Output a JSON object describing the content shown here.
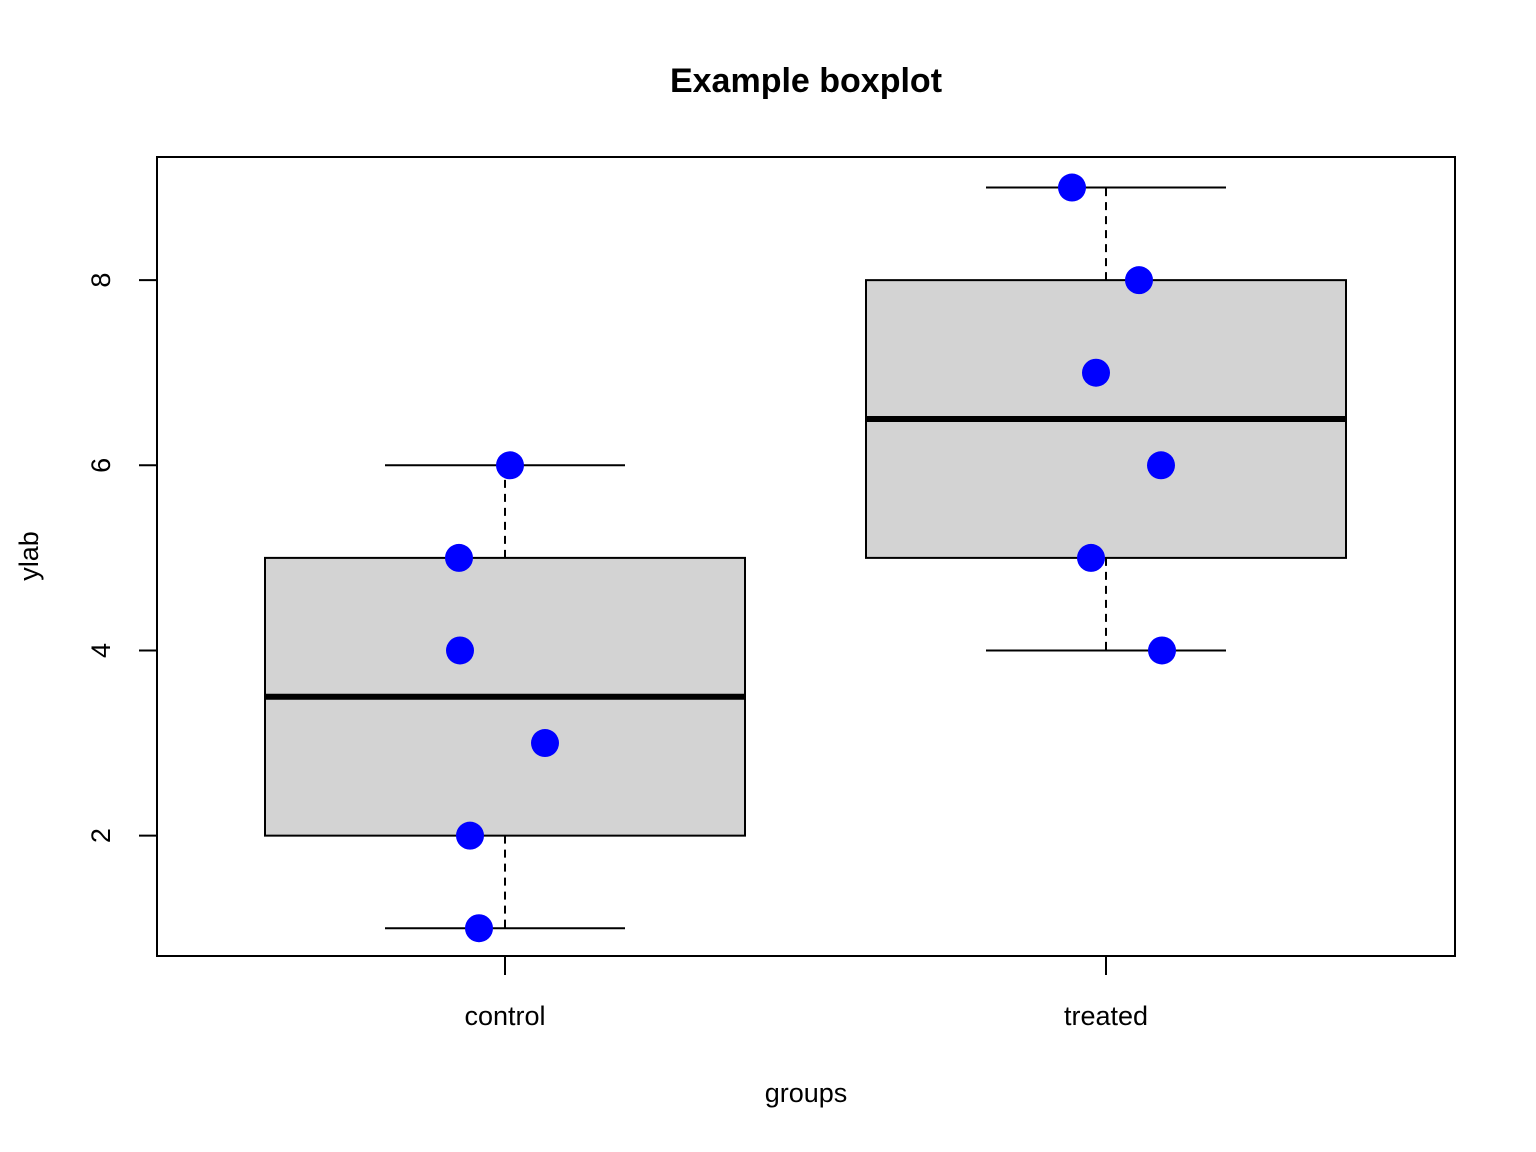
{
  "chart_data": {
    "type": "boxplot",
    "title": "Example boxplot",
    "xlabel": "groups",
    "ylabel": "ylab",
    "categories": [
      "control",
      "treated"
    ],
    "ylim": [
      0.7,
      9.33
    ],
    "yticks": [
      "2",
      "4",
      "6",
      "8"
    ],
    "boxes": [
      {
        "group": "control",
        "min": 1,
        "q1": 2,
        "median": 3.5,
        "q3": 5,
        "max": 6
      },
      {
        "group": "treated",
        "min": 4,
        "q1": 5,
        "median": 6.5,
        "q3": 8,
        "max": 9
      }
    ],
    "points": [
      {
        "group": "control",
        "values": [
          6,
          5,
          4,
          3,
          2,
          1
        ]
      },
      {
        "group": "treated",
        "values": [
          9,
          8,
          7,
          6,
          5,
          4
        ]
      }
    ],
    "colors": {
      "box_fill": "#d3d3d3",
      "point": "#0000ff",
      "line": "#000000"
    }
  }
}
